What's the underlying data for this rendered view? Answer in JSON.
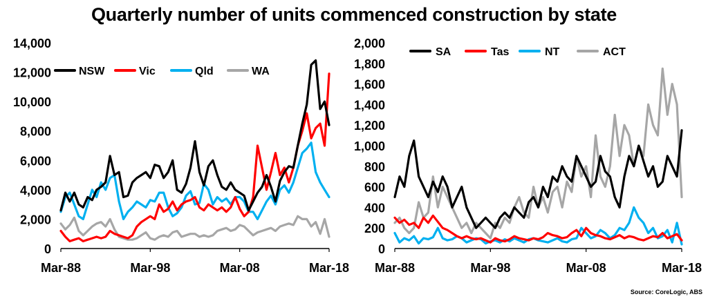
{
  "title": "Quarterly number of units commenced construction by state",
  "source": "Source: CoreLogic, ABS",
  "chart_data": [
    {
      "type": "line",
      "x": [
        "Mar-88",
        "Sep-88",
        "Mar-89",
        "Sep-89",
        "Mar-90",
        "Sep-90",
        "Mar-91",
        "Sep-91",
        "Mar-92",
        "Sep-92",
        "Mar-93",
        "Sep-93",
        "Mar-94",
        "Sep-94",
        "Mar-95",
        "Sep-95",
        "Mar-96",
        "Sep-96",
        "Mar-97",
        "Sep-97",
        "Mar-98",
        "Sep-98",
        "Mar-99",
        "Sep-99",
        "Mar-00",
        "Sep-00",
        "Mar-01",
        "Sep-01",
        "Mar-02",
        "Sep-02",
        "Mar-03",
        "Sep-03",
        "Mar-04",
        "Sep-04",
        "Mar-05",
        "Sep-05",
        "Mar-06",
        "Sep-06",
        "Mar-07",
        "Sep-07",
        "Mar-08",
        "Sep-08",
        "Mar-09",
        "Sep-09",
        "Mar-10",
        "Sep-10",
        "Mar-11",
        "Sep-11",
        "Mar-12",
        "Sep-12",
        "Mar-13",
        "Sep-13",
        "Mar-14",
        "Sep-14",
        "Mar-15",
        "Sep-15",
        "Mar-16",
        "Sep-16",
        "Mar-17",
        "Sep-17",
        "Mar-18"
      ],
      "xticks": [
        "Mar-88",
        "Mar-98",
        "Mar-08",
        "Mar-18"
      ],
      "ylim": [
        0,
        14000
      ],
      "yticks": [
        "0",
        "2,000",
        "4,000",
        "6,000",
        "8,000",
        "10,000",
        "12,000",
        "14,000"
      ],
      "legend_position": "top",
      "series": [
        {
          "name": "NSW",
          "color": "#000000",
          "values": [
            2600,
            3800,
            3200,
            3800,
            3000,
            2800,
            3500,
            3300,
            4000,
            4200,
            4500,
            6300,
            5000,
            5200,
            3500,
            3600,
            4500,
            4800,
            5000,
            5200,
            4800,
            5700,
            5600,
            4800,
            5200,
            6000,
            4000,
            3800,
            4400,
            5500,
            7300,
            5200,
            4300,
            5600,
            6000,
            5000,
            4200,
            4000,
            4500,
            4000,
            3800,
            3600,
            2600,
            3200,
            3800,
            4200,
            5000,
            4200,
            3200,
            4600,
            5200,
            5600,
            5500,
            7000,
            8500,
            9800,
            12500,
            12800,
            9500,
            10000,
            8400
          ]
        },
        {
          "name": "Vic",
          "color": "#ff0000",
          "values": [
            1200,
            800,
            500,
            600,
            700,
            500,
            600,
            700,
            800,
            700,
            800,
            1200,
            1000,
            900,
            800,
            700,
            900,
            1500,
            1800,
            2000,
            2200,
            2000,
            3000,
            2500,
            2700,
            3200,
            2600,
            3000,
            3200,
            3300,
            3500,
            2800,
            2600,
            3000,
            2800,
            2600,
            2800,
            2500,
            2800,
            3500,
            2700,
            2200,
            2500,
            3500,
            7000,
            5500,
            4000,
            5200,
            6500,
            5000,
            5500,
            4500,
            5500,
            7000,
            8000,
            9200,
            7500,
            8200,
            8500,
            7000,
            11900
          ]
        },
        {
          "name": "Qld",
          "color": "#00b0f0",
          "values": [
            2500,
            3500,
            3800,
            3000,
            2200,
            2000,
            3000,
            4000,
            3500,
            4500,
            4000,
            4800,
            5000,
            3200,
            2000,
            2500,
            2800,
            3200,
            3000,
            2800,
            3300,
            3200,
            3800,
            3800,
            2800,
            2200,
            2400,
            2800,
            3600,
            3900,
            3000,
            3100,
            4400,
            4000,
            3000,
            3500,
            3200,
            3400,
            3000,
            3500,
            3500,
            3200,
            2500,
            2500,
            2000,
            2600,
            3200,
            3600,
            3000,
            4000,
            4300,
            3800,
            4500,
            5500,
            6500,
            6800,
            7200,
            5200,
            4500,
            4000,
            3500
          ]
        },
        {
          "name": "WA",
          "color": "#a6a6a6",
          "values": [
            1700,
            1300,
            1600,
            2100,
            1200,
            900,
            1200,
            1500,
            1700,
            1800,
            1500,
            2000,
            1300,
            800,
            700,
            600,
            600,
            700,
            900,
            1100,
            700,
            600,
            800,
            900,
            800,
            1100,
            1200,
            800,
            900,
            1000,
            1000,
            800,
            900,
            800,
            900,
            1200,
            1300,
            1400,
            1200,
            1300,
            1600,
            1500,
            1200,
            900,
            1100,
            1200,
            1300,
            1400,
            1200,
            1500,
            1600,
            1700,
            1600,
            2200,
            2000,
            2000,
            1500,
            1800,
            1000,
            2000,
            800
          ]
        }
      ]
    },
    {
      "type": "line",
      "x": [
        "Mar-88",
        "Sep-88",
        "Mar-89",
        "Sep-89",
        "Mar-90",
        "Sep-90",
        "Mar-91",
        "Sep-91",
        "Mar-92",
        "Sep-92",
        "Mar-93",
        "Sep-93",
        "Mar-94",
        "Sep-94",
        "Mar-95",
        "Sep-95",
        "Mar-96",
        "Sep-96",
        "Mar-97",
        "Sep-97",
        "Mar-98",
        "Sep-98",
        "Mar-99",
        "Sep-99",
        "Mar-00",
        "Sep-00",
        "Mar-01",
        "Sep-01",
        "Mar-02",
        "Sep-02",
        "Mar-03",
        "Sep-03",
        "Mar-04",
        "Sep-04",
        "Mar-05",
        "Sep-05",
        "Mar-06",
        "Sep-06",
        "Mar-07",
        "Sep-07",
        "Mar-08",
        "Sep-08",
        "Mar-09",
        "Sep-09",
        "Mar-10",
        "Sep-10",
        "Mar-11",
        "Sep-11",
        "Mar-12",
        "Sep-12",
        "Mar-13",
        "Sep-13",
        "Mar-14",
        "Sep-14",
        "Mar-15",
        "Sep-15",
        "Mar-16",
        "Sep-16",
        "Mar-17",
        "Sep-17",
        "Mar-18"
      ],
      "xticks": [
        "Mar-88",
        "Mar-98",
        "Mar-08",
        "Mar-18"
      ],
      "ylim": [
        0,
        2000
      ],
      "yticks": [
        "0",
        "200",
        "400",
        "600",
        "800",
        "1,000",
        "1,200",
        "1,400",
        "1,600",
        "1,800",
        "2,000"
      ],
      "legend_position": "top",
      "series": [
        {
          "name": "SA",
          "color": "#000000",
          "values": [
            500,
            700,
            600,
            900,
            1050,
            700,
            600,
            500,
            650,
            550,
            700,
            600,
            400,
            500,
            600,
            400,
            300,
            200,
            250,
            300,
            250,
            200,
            300,
            350,
            300,
            400,
            350,
            300,
            450,
            500,
            400,
            600,
            500,
            700,
            650,
            800,
            700,
            650,
            900,
            800,
            700,
            600,
            650,
            900,
            750,
            700,
            500,
            400,
            700,
            900,
            800,
            1000,
            850,
            700,
            800,
            600,
            650,
            900,
            800,
            700,
            1150
          ]
        },
        {
          "name": "Tas",
          "color": "#ff0000",
          "values": [
            300,
            250,
            280,
            230,
            250,
            200,
            300,
            250,
            320,
            260,
            200,
            180,
            150,
            120,
            100,
            120,
            100,
            90,
            100,
            80,
            60,
            100,
            80,
            70,
            90,
            120,
            100,
            90,
            80,
            100,
            90,
            110,
            150,
            130,
            120,
            100,
            110,
            150,
            180,
            120,
            200,
            150,
            130,
            120,
            100,
            90,
            110,
            130,
            100,
            120,
            110,
            90,
            80,
            100,
            120,
            110,
            150,
            100,
            120,
            140,
            80
          ]
        },
        {
          "name": "NT",
          "color": "#00b0f0",
          "values": [
            150,
            60,
            100,
            80,
            120,
            50,
            100,
            90,
            110,
            200,
            100,
            80,
            90,
            120,
            100,
            60,
            80,
            100,
            90,
            50,
            70,
            80,
            60,
            90,
            70,
            100,
            80,
            60,
            90,
            100,
            80,
            70,
            60,
            80,
            100,
            70,
            60,
            90,
            100,
            200,
            150,
            100,
            120,
            180,
            150,
            100,
            130,
            200,
            180,
            250,
            400,
            300,
            250,
            150,
            200,
            100,
            120,
            180,
            60,
            250,
            40
          ]
        },
        {
          "name": "ACT",
          "color": "#a6a6a6",
          "values": [
            250,
            300,
            200,
            150,
            200,
            450,
            300,
            350,
            700,
            400,
            600,
            500,
            400,
            300,
            200,
            250,
            150,
            250,
            200,
            150,
            100,
            250,
            200,
            300,
            250,
            400,
            500,
            350,
            300,
            600,
            400,
            500,
            350,
            550,
            600,
            400,
            650,
            550,
            900,
            700,
            800,
            500,
            1100,
            700,
            600,
            800,
            1300,
            900,
            1200,
            1100,
            800,
            1000,
            900,
            1400,
            1200,
            1100,
            1750,
            1300,
            1600,
            1400,
            500
          ]
        }
      ]
    }
  ]
}
